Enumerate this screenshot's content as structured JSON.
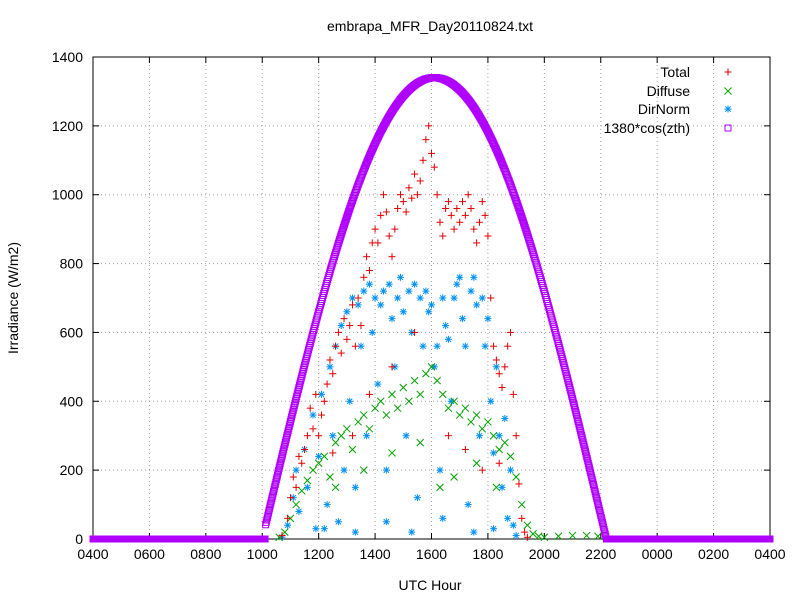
{
  "chart_data": {
    "type": "scatter",
    "title": "embrapa_MFR_Day20110824.txt",
    "xlabel": "UTC Hour",
    "ylabel": "Irradiance (W/m2)",
    "xlim": [
      4,
      28
    ],
    "ylim": [
      0,
      1400
    ],
    "grid": true,
    "legend_position": "top-right",
    "x_tick_labels": [
      "0400",
      "0600",
      "0800",
      "1000",
      "1200",
      "1400",
      "1600",
      "1800",
      "2000",
      "2200",
      "0000",
      "0200",
      "0400"
    ],
    "x_tick_values": [
      4,
      6,
      8,
      10,
      12,
      14,
      16,
      18,
      20,
      22,
      24,
      26,
      28
    ],
    "y_tick_labels": [
      "0",
      "200",
      "400",
      "600",
      "800",
      "1000",
      "1200",
      "1400"
    ],
    "y_tick_values": [
      0,
      200,
      400,
      600,
      800,
      1000,
      1200,
      1400
    ],
    "series": [
      {
        "name": "Total",
        "marker": "plus",
        "color": "#e00000",
        "points": [
          [
            10.7,
            10
          ],
          [
            10.9,
            60
          ],
          [
            11.0,
            120
          ],
          [
            11.1,
            180
          ],
          [
            11.2,
            150
          ],
          [
            11.3,
            240
          ],
          [
            11.4,
            220
          ],
          [
            11.5,
            260
          ],
          [
            11.6,
            300
          ],
          [
            11.7,
            380
          ],
          [
            11.8,
            320
          ],
          [
            11.9,
            420
          ],
          [
            12.0,
            300
          ],
          [
            12.1,
            360
          ],
          [
            12.2,
            400
          ],
          [
            12.3,
            450
          ],
          [
            12.4,
            520
          ],
          [
            12.5,
            480
          ],
          [
            12.6,
            560
          ],
          [
            12.7,
            600
          ],
          [
            12.8,
            540
          ],
          [
            12.9,
            640
          ],
          [
            13.0,
            580
          ],
          [
            13.1,
            620
          ],
          [
            13.2,
            680
          ],
          [
            13.3,
            560
          ],
          [
            13.4,
            700
          ],
          [
            13.5,
            620
          ],
          [
            13.6,
            760
          ],
          [
            13.7,
            820
          ],
          [
            13.8,
            780
          ],
          [
            13.9,
            860
          ],
          [
            14.0,
            900
          ],
          [
            14.1,
            860
          ],
          [
            14.2,
            940
          ],
          [
            14.3,
            1000
          ],
          [
            14.4,
            950
          ],
          [
            14.5,
            880
          ],
          [
            14.6,
            820
          ],
          [
            14.7,
            900
          ],
          [
            14.8,
            960
          ],
          [
            14.9,
            1000
          ],
          [
            15.0,
            980
          ],
          [
            15.1,
            950
          ],
          [
            15.2,
            1020
          ],
          [
            15.3,
            990
          ],
          [
            15.4,
            1060
          ],
          [
            15.5,
            1000
          ],
          [
            15.6,
            1040
          ],
          [
            15.7,
            1100
          ],
          [
            15.8,
            1160
          ],
          [
            15.9,
            1200
          ],
          [
            16.0,
            1120
          ],
          [
            16.1,
            1080
          ],
          [
            16.2,
            1000
          ],
          [
            16.3,
            920
          ],
          [
            16.4,
            880
          ],
          [
            16.5,
            960
          ],
          [
            16.6,
            980
          ],
          [
            16.7,
            940
          ],
          [
            16.8,
            900
          ],
          [
            16.9,
            960
          ],
          [
            17.0,
            920
          ],
          [
            17.1,
            980
          ],
          [
            17.2,
            940
          ],
          [
            17.3,
            1000
          ],
          [
            17.4,
            960
          ],
          [
            17.5,
            900
          ],
          [
            17.6,
            860
          ],
          [
            17.7,
            920
          ],
          [
            17.8,
            980
          ],
          [
            17.9,
            940
          ],
          [
            18.0,
            880
          ],
          [
            18.1,
            700
          ],
          [
            18.2,
            560
          ],
          [
            18.3,
            520
          ],
          [
            18.4,
            480
          ],
          [
            18.5,
            440
          ],
          [
            18.6,
            500
          ],
          [
            18.7,
            560
          ],
          [
            18.8,
            600
          ],
          [
            18.9,
            420
          ],
          [
            19.0,
            300
          ],
          [
            19.1,
            160
          ],
          [
            19.2,
            60
          ],
          [
            19.3,
            20
          ],
          [
            19.4,
            5
          ],
          [
            12.5,
            250
          ],
          [
            13.2,
            300
          ],
          [
            13.8,
            420
          ],
          [
            14.6,
            500
          ],
          [
            15.4,
            600
          ],
          [
            16.6,
            300
          ],
          [
            17.2,
            260
          ],
          [
            17.8,
            200
          ],
          [
            18.4,
            220
          ]
        ]
      },
      {
        "name": "Diffuse",
        "marker": "cross",
        "color": "#00a000",
        "points": [
          [
            10.6,
            5
          ],
          [
            10.8,
            20
          ],
          [
            11.0,
            60
          ],
          [
            11.2,
            100
          ],
          [
            11.4,
            140
          ],
          [
            11.6,
            170
          ],
          [
            11.8,
            200
          ],
          [
            12.0,
            220
          ],
          [
            12.2,
            240
          ],
          [
            12.4,
            180
          ],
          [
            12.6,
            280
          ],
          [
            12.8,
            300
          ],
          [
            13.0,
            320
          ],
          [
            13.2,
            260
          ],
          [
            13.4,
            340
          ],
          [
            13.6,
            360
          ],
          [
            13.8,
            320
          ],
          [
            14.0,
            380
          ],
          [
            14.2,
            400
          ],
          [
            14.4,
            360
          ],
          [
            14.6,
            420
          ],
          [
            14.8,
            380
          ],
          [
            15.0,
            440
          ],
          [
            15.2,
            400
          ],
          [
            15.4,
            460
          ],
          [
            15.6,
            420
          ],
          [
            15.8,
            480
          ],
          [
            16.0,
            500
          ],
          [
            16.2,
            460
          ],
          [
            16.4,
            420
          ],
          [
            16.6,
            380
          ],
          [
            16.8,
            400
          ],
          [
            17.0,
            360
          ],
          [
            17.2,
            380
          ],
          [
            17.4,
            340
          ],
          [
            17.6,
            360
          ],
          [
            17.8,
            320
          ],
          [
            18.0,
            340
          ],
          [
            18.2,
            300
          ],
          [
            18.4,
            260
          ],
          [
            18.6,
            280
          ],
          [
            18.8,
            240
          ],
          [
            19.0,
            180
          ],
          [
            19.2,
            100
          ],
          [
            19.4,
            40
          ],
          [
            19.6,
            15
          ],
          [
            19.8,
            8
          ],
          [
            20.0,
            5
          ],
          [
            20.5,
            8
          ],
          [
            21.0,
            10
          ],
          [
            21.5,
            10
          ],
          [
            21.9,
            8
          ],
          [
            12.6,
            150
          ],
          [
            13.6,
            200
          ],
          [
            14.6,
            250
          ],
          [
            15.6,
            280
          ],
          [
            16.3,
            150
          ],
          [
            16.8,
            180
          ],
          [
            17.6,
            220
          ],
          [
            18.3,
            150
          ]
        ]
      },
      {
        "name": "DirNorm",
        "marker": "star",
        "color": "#0090f0",
        "points": [
          [
            10.7,
            5
          ],
          [
            10.9,
            40
          ],
          [
            11.1,
            120
          ],
          [
            11.2,
            200
          ],
          [
            11.3,
            80
          ],
          [
            11.5,
            260
          ],
          [
            11.6,
            150
          ],
          [
            11.8,
            360
          ],
          [
            11.9,
            30
          ],
          [
            12.0,
            240
          ],
          [
            12.1,
            420
          ],
          [
            12.3,
            100
          ],
          [
            12.4,
            500
          ],
          [
            12.5,
            300
          ],
          [
            12.6,
            560
          ],
          [
            12.7,
            50
          ],
          [
            12.8,
            620
          ],
          [
            12.9,
            200
          ],
          [
            13.0,
            660
          ],
          [
            13.1,
            400
          ],
          [
            13.2,
            700
          ],
          [
            13.3,
            150
          ],
          [
            13.4,
            680
          ],
          [
            13.5,
            560
          ],
          [
            13.6,
            720
          ],
          [
            13.7,
            300
          ],
          [
            13.8,
            740
          ],
          [
            13.9,
            600
          ],
          [
            14.0,
            700
          ],
          [
            14.1,
            450
          ],
          [
            14.2,
            680
          ],
          [
            14.3,
            720
          ],
          [
            14.4,
            200
          ],
          [
            14.5,
            740
          ],
          [
            14.6,
            640
          ],
          [
            14.7,
            500
          ],
          [
            14.8,
            700
          ],
          [
            14.9,
            760
          ],
          [
            15.0,
            660
          ],
          [
            15.1,
            300
          ],
          [
            15.2,
            720
          ],
          [
            15.3,
            600
          ],
          [
            15.4,
            740
          ],
          [
            15.5,
            120
          ],
          [
            15.6,
            700
          ],
          [
            15.7,
            560
          ],
          [
            15.8,
            720
          ],
          [
            15.9,
            660
          ],
          [
            16.0,
            680
          ],
          [
            16.1,
            500
          ],
          [
            16.2,
            560
          ],
          [
            16.3,
            200
          ],
          [
            16.4,
            700
          ],
          [
            16.5,
            620
          ],
          [
            16.6,
            580
          ],
          [
            16.7,
            400
          ],
          [
            16.8,
            700
          ],
          [
            16.9,
            740
          ],
          [
            17.0,
            760
          ],
          [
            17.1,
            640
          ],
          [
            17.2,
            560
          ],
          [
            17.3,
            100
          ],
          [
            17.4,
            720
          ],
          [
            17.5,
            760
          ],
          [
            17.6,
            680
          ],
          [
            17.7,
            300
          ],
          [
            17.8,
            700
          ],
          [
            17.9,
            560
          ],
          [
            18.0,
            640
          ],
          [
            18.1,
            400
          ],
          [
            18.2,
            250
          ],
          [
            18.3,
            500
          ],
          [
            18.4,
            300
          ],
          [
            18.5,
            150
          ],
          [
            18.6,
            350
          ],
          [
            18.7,
            60
          ],
          [
            18.8,
            200
          ],
          [
            18.9,
            40
          ],
          [
            19.0,
            10
          ],
          [
            12.2,
            30
          ],
          [
            13.3,
            20
          ],
          [
            14.4,
            50
          ],
          [
            15.3,
            20
          ],
          [
            16.4,
            60
          ],
          [
            17.5,
            20
          ],
          [
            18.2,
            30
          ]
        ]
      },
      {
        "name": "1380*cos(zth)",
        "marker": "square",
        "color": "#b000ff",
        "curve": {
          "x_start": 4,
          "x_end": 28,
          "rise": 10.1,
          "set": 22.3,
          "peak": 1340,
          "peak_x": 16.1
        }
      }
    ]
  }
}
